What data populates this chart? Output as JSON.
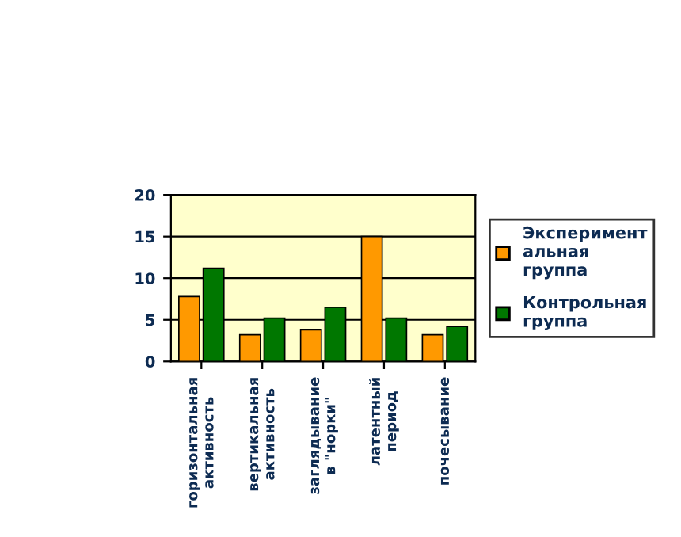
{
  "chart_data": {
    "type": "bar",
    "categories": [
      "горизонтальная\nактивность",
      "вертикальная\nактивность",
      "заглядывание\nв \"норки\"",
      "латентный\nпериод",
      "почесывание"
    ],
    "series": [
      {
        "name": "Эксперимент\nальная\nгруппа",
        "color": "#ff9900",
        "values": [
          7.8,
          3.2,
          3.8,
          15,
          3.2
        ]
      },
      {
        "name": "Контрольная\nгруппа",
        "color": "#007700",
        "values": [
          11.2,
          5.2,
          6.5,
          5.2,
          4.2
        ]
      }
    ],
    "ylim": [
      0,
      20
    ],
    "yticks": [
      0,
      5,
      10,
      15,
      20
    ],
    "grid": "y",
    "legend": "right"
  }
}
